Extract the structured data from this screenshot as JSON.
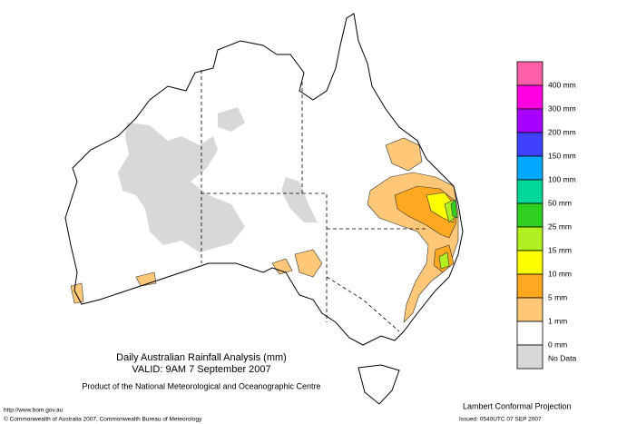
{
  "map": {
    "title": "Daily Australian Rainfall Analysis (mm)",
    "valid": "VALID: 9AM  7 September 2007",
    "product": "Product of the National Meteorological and Oceanographic Centre",
    "url": "http://www.bom.gov.au",
    "copyright": "© Commonwealth of Australia 2007, Commonwealth Bureau of Meteorology",
    "projection": "Lambert Conformal Projection",
    "issued": "Issued: 0540UTC 07 SEP 2007"
  },
  "legend": {
    "swatches": [
      "#ff5fa8",
      "#ff00e0",
      "#a800ff",
      "#4040ff",
      "#00a8ff",
      "#00d89a",
      "#30d020",
      "#b0f020",
      "#ffff00",
      "#ffa820",
      "#ffc878",
      "#ffffff",
      "#d8d8d8"
    ],
    "labels": [
      "400 mm",
      "300 mm",
      "200 mm",
      "150 mm",
      "100 mm",
      "50 mm",
      "25 mm",
      "15 mm",
      "10 mm",
      "5 mm",
      "1 mm",
      "0 mm",
      "No Data"
    ]
  }
}
